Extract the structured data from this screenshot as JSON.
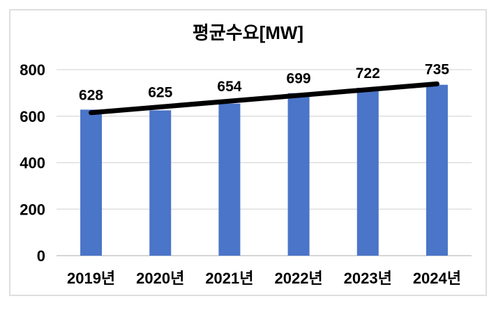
{
  "chart_data": {
    "type": "bar",
    "title": "평균수요[MW]",
    "categories": [
      "2019년",
      "2020년",
      "2021년",
      "2022년",
      "2023년",
      "2024년"
    ],
    "values": [
      628,
      625,
      654,
      699,
      722,
      735
    ],
    "data_labels": [
      "628",
      "625",
      "654",
      "699",
      "722",
      "735"
    ],
    "xlabel": "",
    "ylabel": "",
    "ylim": [
      0,
      800
    ],
    "yticks": [
      0,
      200,
      400,
      600,
      800
    ],
    "ytick_labels": [
      "0",
      "200",
      "400",
      "600",
      "800"
    ],
    "grid": true,
    "legend": "none",
    "bar_color": "#4A75C8",
    "trendline": {
      "type": "linear",
      "color": "#000000",
      "endpoints": [
        615,
        739
      ]
    },
    "colors": {
      "gridline": "#D9D9D9",
      "axis_line": "#C9C9C9",
      "text": "#000000",
      "frame_border": "#DEDEDE",
      "background": "#FFFFFF"
    }
  }
}
